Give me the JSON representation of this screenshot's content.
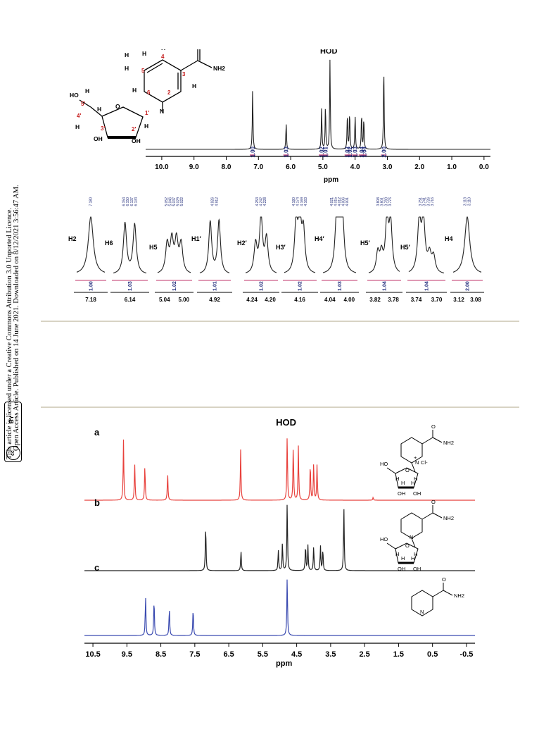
{
  "sidebar": {
    "publication_line": "Open Access Article. Published on 14 June 2021. Downloaded on 8/12/2021 3:56:47 AM.",
    "license_line": "This article is licensed under a Creative Commons Attribution 3.0 Unported Licence.",
    "badge_cc": "cc",
    "badge_by": "BY"
  },
  "colors": {
    "spectrum_a": "#e8413c",
    "spectrum_b": "#222222",
    "spectrum_c": "#3a4ab0",
    "integral": "#c0356b",
    "integral_text": "#1f2a7a"
  },
  "chart_data": [
    {
      "type": "line",
      "id": "nmrh-full",
      "xlabel": "ppm",
      "xlim": [
        10.5,
        -0.2
      ],
      "x_ticks": [
        "10.0",
        "9.0",
        "8.0",
        "7.0",
        "6.0",
        "5.0",
        "4.0",
        "3.0",
        "2.0",
        "1.0",
        "0.0"
      ],
      "annotation": "HOD",
      "peaks": [
        {
          "ppm": 7.18,
          "height": 0.65
        },
        {
          "ppm": 6.14,
          "height": 0.28
        },
        {
          "ppm": 5.04,
          "height": 0.45
        },
        {
          "ppm": 4.92,
          "height": 0.46
        },
        {
          "ppm": 4.78,
          "height": 0.95
        },
        {
          "ppm": 4.24,
          "height": 0.38
        },
        {
          "ppm": 4.17,
          "height": 0.39
        },
        {
          "ppm": 4.0,
          "height": 0.36
        },
        {
          "ppm": 3.8,
          "height": 0.38
        },
        {
          "ppm": 3.73,
          "height": 0.33
        },
        {
          "ppm": 3.11,
          "height": 0.89
        }
      ],
      "integrals": [
        {
          "ppm": 7.18,
          "label": "1.00"
        },
        {
          "ppm": 6.14,
          "label": "1.03"
        },
        {
          "ppm": 5.04,
          "label": "1.02"
        },
        {
          "ppm": 4.92,
          "label": "1.01"
        },
        {
          "ppm": 4.24,
          "label": "1.02"
        },
        {
          "ppm": 4.17,
          "label": "1.02"
        },
        {
          "ppm": 4.0,
          "label": "1.03"
        },
        {
          "ppm": 3.8,
          "label": "1.04"
        },
        {
          "ppm": 3.72,
          "label": "1.04"
        },
        {
          "ppm": 3.11,
          "label": "2.00"
        }
      ],
      "molecule_labels": [
        "HO",
        "H",
        "5'",
        "4'",
        "H",
        "H",
        "3'",
        "OH",
        "O",
        "2'",
        "OH",
        "H",
        "1'",
        "N",
        "6",
        "2",
        "H",
        "H",
        "H",
        "5",
        "4",
        "H",
        "H",
        "3",
        "O",
        "NH2",
        "H"
      ]
    },
    {
      "type": "line",
      "id": "nmrh-zoom",
      "panels": [
        {
          "label": "H2",
          "ticks": [
            "7.18"
          ],
          "integral": "1.00",
          "peak_labels": [
            "7.180"
          ]
        },
        {
          "label": "H6",
          "ticks": [
            "6.14"
          ],
          "integral": "1.03",
          "peak_labels": [
            "6.154",
            "6.150",
            "6.137",
            "6.134"
          ]
        },
        {
          "label": "H5",
          "ticks": [
            "5.04",
            "5.00"
          ],
          "integral": "1.02",
          "peak_labels": [
            "5.052",
            "5.046",
            "5.037",
            "5.029",
            "5.022"
          ]
        },
        {
          "label": "H1′",
          "ticks": [
            "4.92"
          ],
          "integral": "1.01",
          "peak_labels": [
            "4.926",
            "4.912"
          ]
        },
        {
          "label": "H2′",
          "ticks": [
            "4.24",
            "4.20"
          ],
          "integral": "1.02",
          "peak_labels": [
            "4.253",
            "4.242",
            "4.228"
          ]
        },
        {
          "label": "H3′",
          "ticks": [
            "4.16"
          ],
          "integral": "1.02",
          "peak_labels": [
            "4.180",
            "4.174",
            "4.169",
            "4.163"
          ]
        },
        {
          "label": "H4′",
          "ticks": [
            "4.04",
            "4.00"
          ],
          "integral": "1.03",
          "peak_labels": [
            "4.021",
            "4.015",
            "4.012",
            "4.006",
            "4.001"
          ]
        },
        {
          "label": "H5′",
          "ticks": [
            "3.82",
            "3.78"
          ],
          "integral": "1.04",
          "peak_labels": [
            "3.808",
            "3.801",
            "3.783",
            "3.776"
          ]
        },
        {
          "label": "H5′",
          "ticks": [
            "3.74",
            "3.70"
          ],
          "integral": "1.04",
          "peak_labels": [
            "3.751",
            "3.741",
            "3.726",
            "3.716"
          ]
        },
        {
          "label": "H4",
          "ticks": [
            "3.12",
            "3.08"
          ],
          "integral": "2.00",
          "peak_labels": [
            "3.113",
            "3.110"
          ]
        }
      ]
    },
    {
      "type": "line",
      "id": "nmrh-compare",
      "xlabel": "ppm",
      "xlim": [
        10.75,
        -0.75
      ],
      "x_ticks": [
        "10.5",
        "9.5",
        "8.5",
        "7.5",
        "6.5",
        "5.5",
        "4.5",
        "3.5",
        "2.5",
        "1.5",
        "0.5",
        "-0.5"
      ],
      "annotation": "HOD",
      "series": [
        {
          "name": "a",
          "peaks": [
            {
              "ppm": 9.6,
              "height": 0.86
            },
            {
              "ppm": 9.27,
              "height": 0.52
            },
            {
              "ppm": 8.97,
              "height": 0.5
            },
            {
              "ppm": 8.3,
              "height": 0.38
            },
            {
              "ppm": 6.15,
              "height": 0.72
            },
            {
              "ppm": 4.78,
              "height": 0.92
            },
            {
              "ppm": 4.6,
              "height": 0.78
            },
            {
              "ppm": 4.45,
              "height": 0.77
            },
            {
              "ppm": 4.1,
              "height": 0.52
            },
            {
              "ppm": 4.0,
              "height": 0.53
            },
            {
              "ppm": 3.9,
              "height": 0.5
            },
            {
              "ppm": 2.25,
              "height": 0.04
            }
          ],
          "molecule_labels": [
            "O",
            "NH2",
            "+",
            "N",
            "Cl-",
            "HO",
            "O",
            "H",
            "H",
            "H",
            "H",
            "OH",
            "OH"
          ]
        },
        {
          "name": "b",
          "peaks": [
            {
              "ppm": 7.18,
              "height": 0.65
            },
            {
              "ppm": 6.14,
              "height": 0.28
            },
            {
              "ppm": 5.04,
              "height": 0.29
            },
            {
              "ppm": 4.92,
              "height": 0.4
            },
            {
              "ppm": 4.78,
              "height": 0.98
            },
            {
              "ppm": 4.24,
              "height": 0.36
            },
            {
              "ppm": 4.17,
              "height": 0.36
            },
            {
              "ppm": 4.0,
              "height": 0.35
            },
            {
              "ppm": 3.8,
              "height": 0.35
            },
            {
              "ppm": 3.73,
              "height": 0.3
            },
            {
              "ppm": 3.11,
              "height": 0.88
            }
          ],
          "molecule_labels": [
            "O",
            "NH2",
            "N",
            "HO",
            "O",
            "H",
            "H",
            "H",
            "H",
            "OH",
            "OH"
          ]
        },
        {
          "name": "c",
          "peaks": [
            {
              "ppm": 8.95,
              "height": 0.6
            },
            {
              "ppm": 8.7,
              "height": 0.57
            },
            {
              "ppm": 8.25,
              "height": 0.44
            },
            {
              "ppm": 7.55,
              "height": 0.43
            },
            {
              "ppm": 4.78,
              "height": 0.93
            }
          ],
          "molecule_labels": [
            "O",
            "NH2",
            "N"
          ]
        }
      ]
    }
  ]
}
